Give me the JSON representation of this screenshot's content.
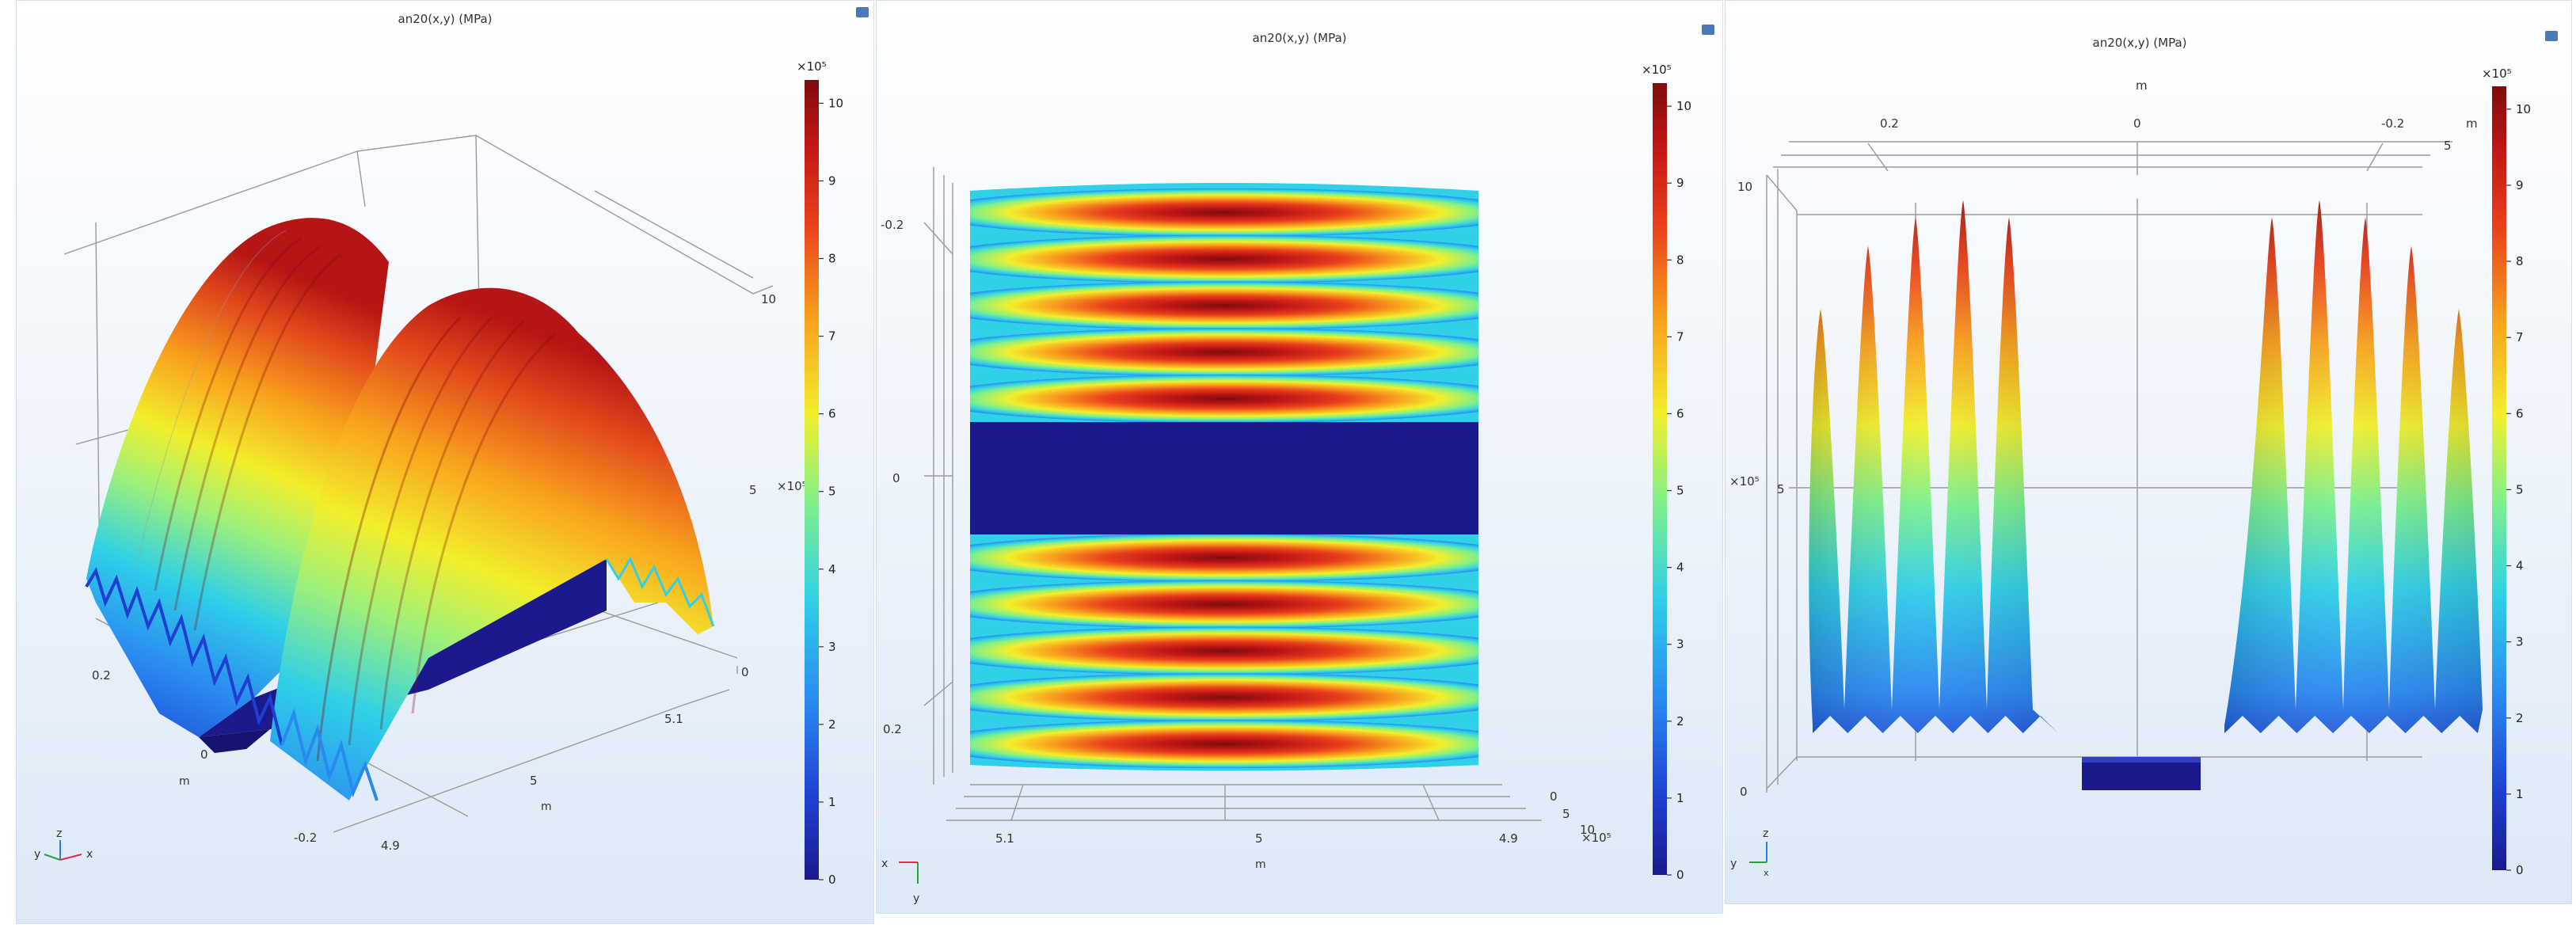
{
  "colors": {
    "colormap": [
      "#1a1a8c",
      "#1f3fd2",
      "#2a88f0",
      "#2fd0e8",
      "#7ff08a",
      "#f2ef2c",
      "#f9a21d",
      "#e9401b",
      "#c01616",
      "#7d0c0c"
    ],
    "background_top": "#ffffff",
    "background_bottom": "#dde9f7"
  },
  "icons": [
    "camera-icon",
    "axis-triad-icon"
  ],
  "chart_data": [
    {
      "type": "heatmap",
      "subtype": "3d-surface",
      "title": "an20(x,y) (MPa)",
      "colorbar": {
        "exponent": "×10⁵",
        "ticks": [
          "10",
          "9",
          "8",
          "7",
          "6",
          "5",
          "4",
          "3",
          "2",
          "1",
          "0"
        ],
        "range": [
          0,
          1030000
        ]
      },
      "z_ticks": [
        "10",
        "5",
        "0"
      ],
      "z_exponent": "×10⁵",
      "y_ticks": [
        "0.2",
        "0",
        "-0.2"
      ],
      "y_axis_label": "m",
      "x_ticks": [
        "5.1",
        "5",
        "4.9"
      ],
      "x_axis_label": "m",
      "triad_labels": [
        "y",
        "z",
        "x"
      ],
      "ridges": 10,
      "center_gap": [
        -0.04,
        0.04
      ]
    },
    {
      "type": "heatmap",
      "subtype": "top-view",
      "title": "an20(x,y) (MPa)",
      "colorbar": {
        "exponent": "×10⁵",
        "ticks": [
          "10",
          "9",
          "8",
          "7",
          "6",
          "5",
          "4",
          "3",
          "2",
          "1",
          "0"
        ],
        "range": [
          0,
          1030000
        ]
      },
      "y_ticks": [
        "-0.2",
        "0",
        "0.2"
      ],
      "x_ticks": [
        "5.1",
        "5",
        "4.9"
      ],
      "x_axis_label": "m",
      "z_ticks": [
        "0",
        "5",
        "10"
      ],
      "z_exponent": "×10⁵",
      "triad_labels": [
        "x",
        "y"
      ],
      "bands": 10
    },
    {
      "type": "heatmap",
      "subtype": "front-view",
      "title": "an20(x,y) (MPa)",
      "colorbar": {
        "exponent": "×10⁵",
        "ticks": [
          "10",
          "9",
          "8",
          "7",
          "6",
          "5",
          "4",
          "3",
          "2",
          "1",
          "0"
        ],
        "range": [
          0,
          1030000
        ]
      },
      "y_axis_label": "m",
      "y_ticks": [
        "0.2",
        "0",
        "-0.2"
      ],
      "y_side_labels": [
        "m",
        "5"
      ],
      "z_ticks": [
        "10",
        "5",
        "0"
      ],
      "z_exponent": "×10⁵",
      "triad_labels": [
        "y",
        "z",
        "x"
      ],
      "peaks_relative": [
        0.78,
        0.89,
        0.94,
        0.97,
        0.94,
        0.94,
        0.97,
        0.94,
        0.89,
        0.78
      ]
    }
  ]
}
